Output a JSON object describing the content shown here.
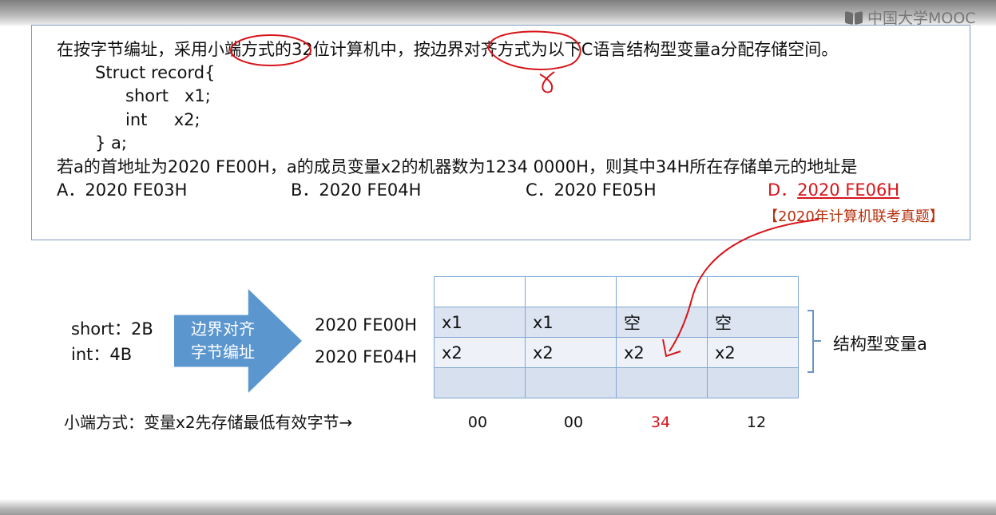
{
  "watermark": {
    "text": "中国大学MOOC"
  },
  "question": {
    "intro": "在按字节编址，采用小端方式的32位计算机中，按边界对齐方式为以下C语言结构型变量a分配存储空间。",
    "code": [
      "Struct record{",
      "short   x1;",
      "int     x2;",
      "} a;"
    ],
    "ask": "若a的首地址为2020 FE00H，a的成员变量x2的机器数为1234 0000H，则其中34H所在存储单元的地址是",
    "options": [
      {
        "letter": "A．",
        "value": "2020 FE03H"
      },
      {
        "letter": "B．",
        "value": "2020 FE04H"
      },
      {
        "letter": "C．",
        "value": "2020 FE05H"
      },
      {
        "letter": "D．",
        "value": "2020 FE06H"
      }
    ],
    "source": "【2020年计算机联考真题】"
  },
  "diagram": {
    "sizes": [
      "short：2B",
      "int：4B"
    ],
    "arrow_label": [
      "边界对齐",
      "字节编址"
    ],
    "addresses": [
      "2020 FE00H",
      "2020 FE04H"
    ],
    "memory_rows": [
      [
        "",
        "",
        "",
        ""
      ],
      [
        "x1",
        "x1",
        "空",
        "空"
      ],
      [
        "x2",
        "x2",
        "x2",
        "x2"
      ],
      [
        "",
        "",
        "",
        ""
      ]
    ],
    "struct_label": "结构型变量a",
    "little_endian_note": "小端方式：变量x2先存储最低有效字节→",
    "bytes": [
      "00",
      "00",
      "34",
      "12"
    ],
    "highlight_byte_index": 2,
    "highlight_color": "#d7141a"
  }
}
